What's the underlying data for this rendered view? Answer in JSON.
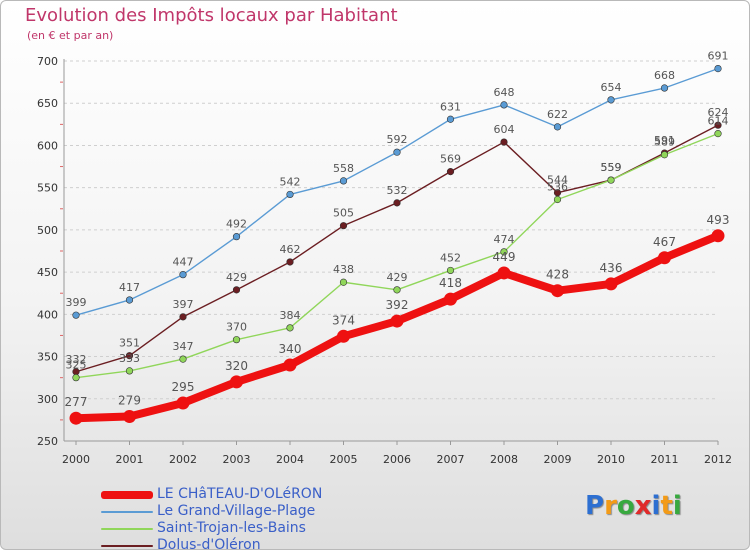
{
  "header": {
    "title": "Evolution des Impôts locaux par Habitant",
    "subtitle": "(en € et par an)"
  },
  "logo": {
    "text": "Proxiti",
    "letters": [
      "P",
      "r",
      "o",
      "x",
      "i",
      "t",
      "i"
    ],
    "letter_colors": [
      "#2d6fd1",
      "#f39b17",
      "#38a93f",
      "#e02a2a",
      "#2d6fd1",
      "#f39b17",
      "#38a93f"
    ]
  },
  "chart_data": {
    "type": "line",
    "title": "Evolution des Impôts locaux par Habitant",
    "subtitle": "(en € et par an)",
    "xlabel": "",
    "ylabel": "",
    "x": [
      "2000",
      "2001",
      "2002",
      "2003",
      "2004",
      "2005",
      "2006",
      "2007",
      "2008",
      "2009",
      "2010",
      "2011",
      "2012"
    ],
    "ylim": [
      250,
      700
    ],
    "yticks": [
      "250",
      "300",
      "350",
      "400",
      "450",
      "500",
      "550",
      "600",
      "650",
      "700"
    ],
    "grid": "horizontal-dashed",
    "legend": "bottom-left",
    "series": [
      {
        "name": "LE CHâTEAU-D'OLéRON",
        "color": "#ee1111",
        "values": [
          277,
          279,
          295,
          320,
          340,
          374,
          392,
          418,
          449,
          428,
          436,
          467,
          493
        ],
        "labels": [
          "277",
          "279",
          "295",
          "320",
          "340",
          "374",
          "392",
          "418",
          "449",
          "428",
          "436",
          "467",
          "493"
        ]
      },
      {
        "name": "Le Grand-Village-Plage",
        "color": "#5a9bd4",
        "values": [
          399,
          417,
          447,
          492,
          542,
          558,
          592,
          631,
          648,
          622,
          654,
          668,
          691
        ],
        "labels": [
          "399",
          "417",
          "447",
          "492",
          "542",
          "558",
          "592",
          "631",
          "648",
          "622",
          "654",
          "668",
          "691"
        ]
      },
      {
        "name": "Saint-Trojan-les-Bains",
        "color": "#90d65a",
        "values": [
          325,
          333,
          347,
          370,
          384,
          438,
          429,
          452,
          474,
          536,
          559,
          589,
          614
        ],
        "labels": [
          "325",
          "333",
          "347",
          "370",
          "384",
          "438",
          "429",
          "452",
          "474",
          "536",
          "559",
          "589",
          "614"
        ]
      },
      {
        "name": "Dolus-d'Oléron",
        "color": "#6b1e22",
        "values": [
          332,
          351,
          397,
          429,
          462,
          505,
          532,
          569,
          604,
          544,
          559,
          591,
          624
        ],
        "labels": [
          "332",
          "351",
          "397",
          "429",
          "462",
          "505",
          "532",
          "569",
          "604",
          "544",
          "559",
          "591",
          "624"
        ]
      }
    ]
  }
}
